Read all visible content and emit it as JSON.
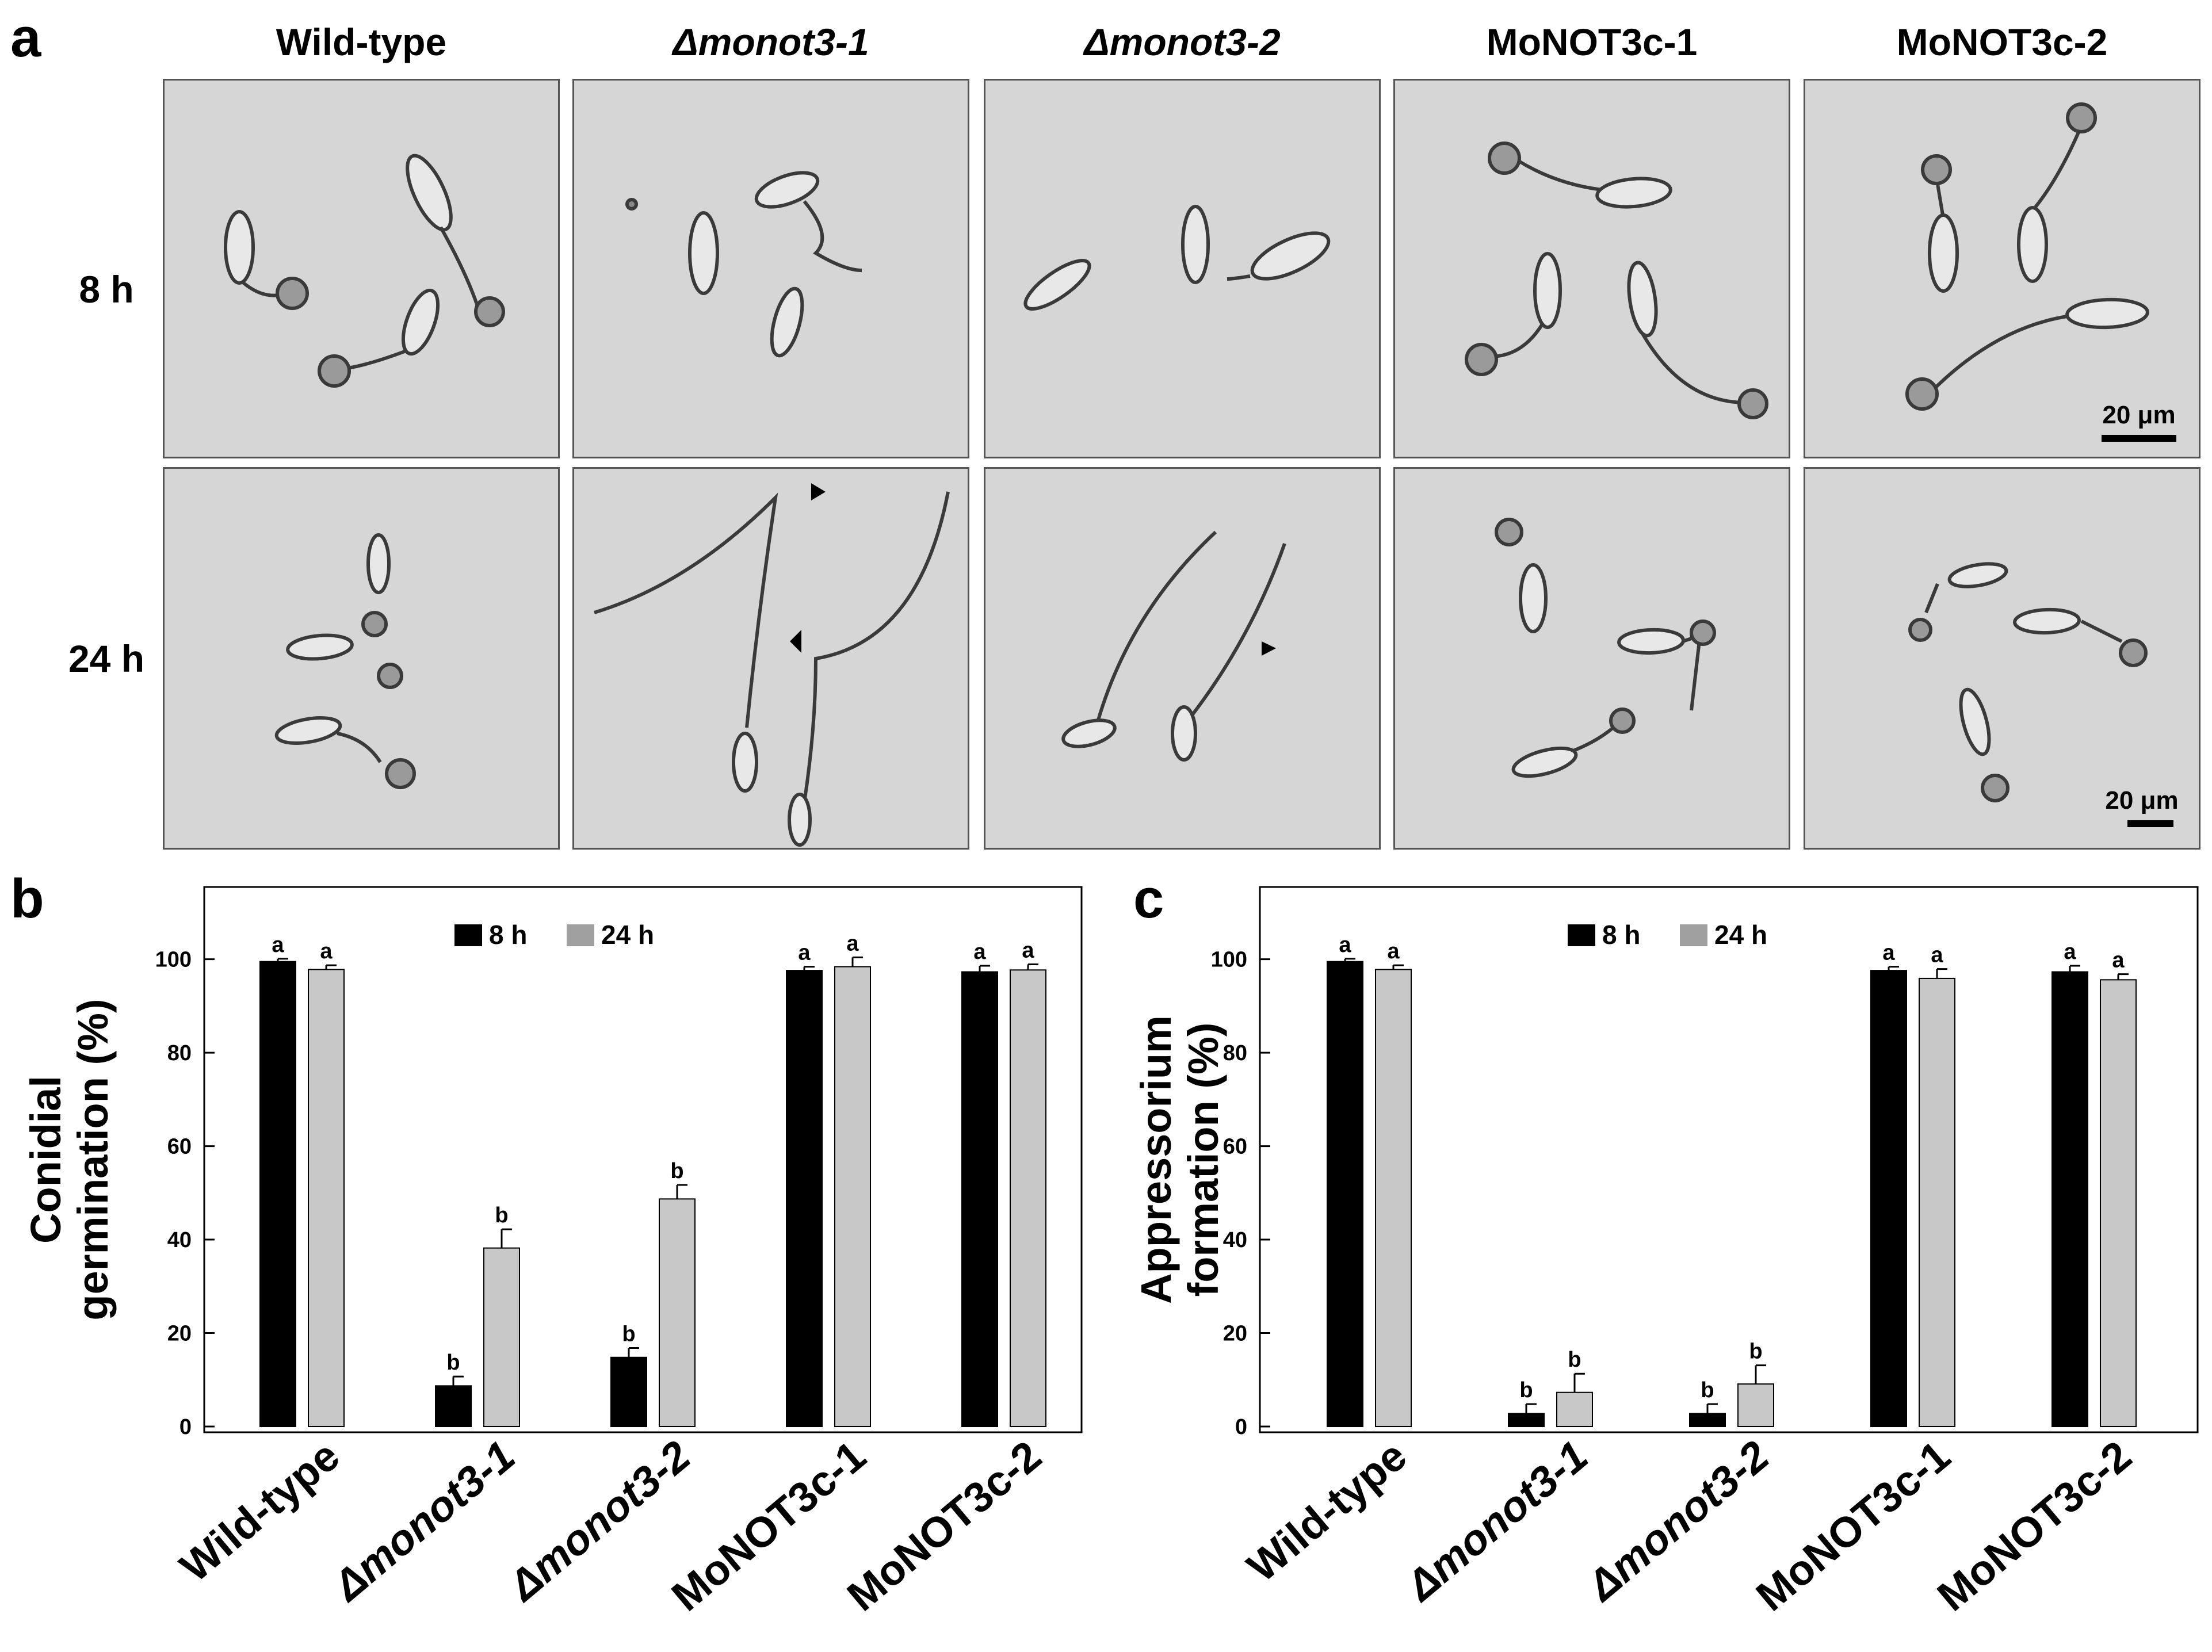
{
  "panels": {
    "a_letter": "a",
    "b_letter": "b",
    "c_letter": "c"
  },
  "microscopy": {
    "column_headers": [
      "Wild-type",
      "Δmonot3-1",
      "Δmonot3-2",
      "MoNOT3c-1",
      "MoNOT3c-2"
    ],
    "row_labels": [
      "8 h",
      "24 h"
    ],
    "scale_bar_text": "20 μm"
  },
  "chart_data": [
    {
      "type": "bar",
      "categories": [
        "Wild-type",
        "Δmonot3-1",
        "Δmonot3-2",
        "MoNOT3c-1",
        "MoNOT3c-2"
      ],
      "series": [
        {
          "name": "8 h",
          "color": "#000000",
          "values": [
            99.5,
            8.7,
            14.8,
            97.6,
            97.3
          ],
          "errors": [
            0.6,
            2.0,
            2.0,
            0.8,
            1.3
          ],
          "labels": [
            "a",
            "b",
            "b",
            "a",
            "a"
          ]
        },
        {
          "name": "24 h",
          "color": "#c8c8c8",
          "values": [
            97.8,
            38.2,
            48.7,
            98.4,
            97.7
          ],
          "errors": [
            0.9,
            4.0,
            3.0,
            2.0,
            1.2
          ],
          "labels": [
            "a",
            "b",
            "b",
            "a",
            "a"
          ]
        }
      ],
      "ylabel_line1": "Conidial",
      "ylabel_line2": "germination (%)",
      "yticks": [
        0,
        20,
        40,
        60,
        80,
        100
      ],
      "ylim": [
        0,
        113
      ],
      "legend": "top-center"
    },
    {
      "type": "bar",
      "categories": [
        "Wild-type",
        "Δmonot3-1",
        "Δmonot3-2",
        "MoNOT3c-1",
        "MoNOT3c-2"
      ],
      "series": [
        {
          "name": "8 h",
          "color": "#000000",
          "values": [
            99.5,
            2.8,
            2.8,
            97.6,
            97.3
          ],
          "errors": [
            0.6,
            2.0,
            2.0,
            0.8,
            1.3
          ],
          "labels": [
            "a",
            "b",
            "b",
            "a",
            "a"
          ]
        },
        {
          "name": "24 h",
          "color": "#c8c8c8",
          "values": [
            97.8,
            7.3,
            9.1,
            95.9,
            95.6
          ],
          "errors": [
            0.9,
            4.0,
            4.0,
            2.0,
            1.2
          ],
          "labels": [
            "a",
            "b",
            "b",
            "a",
            "a"
          ]
        }
      ],
      "ylabel_line1": "Appressorium",
      "ylabel_line2": "formation (%)",
      "yticks": [
        0,
        20,
        40,
        60,
        80,
        100
      ],
      "ylim": [
        0,
        113
      ],
      "legend": "top-center"
    }
  ]
}
